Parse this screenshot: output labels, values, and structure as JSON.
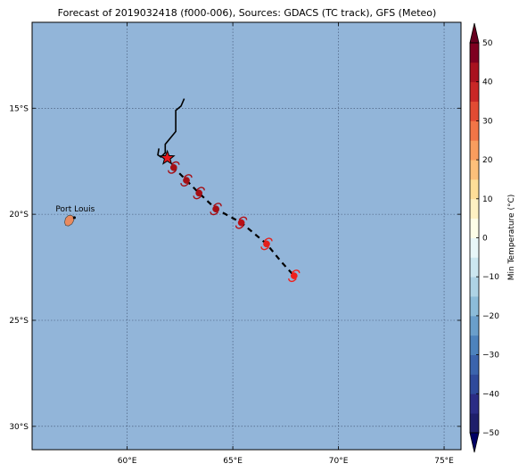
{
  "map": {
    "title": "Forecast of 2019032418 (f000-006), Sources: GDACS (TC track), GFS (Meteo)",
    "lon_range": [
      55.5,
      75.8
    ],
    "lat_range": [
      -31.1,
      -10.95
    ],
    "lon_ticks": [
      {
        "value": 60,
        "label": "60°E"
      },
      {
        "value": 65,
        "label": "65°E"
      },
      {
        "value": 70,
        "label": "70°E"
      },
      {
        "value": 75,
        "label": "75°E"
      }
    ],
    "lat_ticks": [
      {
        "value": -15,
        "label": "15°S"
      },
      {
        "value": -20,
        "label": "20°S"
      },
      {
        "value": -25,
        "label": "25°S"
      },
      {
        "value": -30,
        "label": "30°S"
      }
    ],
    "grid": true,
    "ocean_color": "#92b5d9",
    "place": {
      "name": "Port Louis",
      "lon": 57.5,
      "lat": -20.16
    },
    "past_track": [
      [
        62.7,
        -14.55
      ],
      [
        62.55,
        -14.9
      ],
      [
        62.3,
        -15.1
      ],
      [
        62.3,
        -16.1
      ],
      [
        61.8,
        -16.7
      ],
      [
        61.8,
        -17.1
      ],
      [
        61.6,
        -17.3
      ],
      [
        61.45,
        -17.2
      ],
      [
        61.5,
        -16.9
      ]
    ],
    "current_position": {
      "lon": 61.9,
      "lat": -17.35
    },
    "forecast_track": [
      [
        61.9,
        -17.35
      ],
      [
        62.2,
        -17.8
      ],
      [
        62.8,
        -18.4
      ],
      [
        63.4,
        -19.0
      ],
      [
        64.2,
        -19.75
      ],
      [
        65.4,
        -20.4
      ],
      [
        66.6,
        -21.4
      ],
      [
        67.3,
        -22.25
      ],
      [
        67.9,
        -22.9
      ]
    ],
    "forecast_points": [
      {
        "lon": 62.2,
        "lat": -17.8,
        "color": "#a50f15"
      },
      {
        "lon": 62.8,
        "lat": -18.4,
        "color": "#a50f15"
      },
      {
        "lon": 63.4,
        "lat": -19.0,
        "color": "#a50f15"
      },
      {
        "lon": 64.2,
        "lat": -19.75,
        "color": "#a50f15"
      },
      {
        "lon": 65.4,
        "lat": -20.4,
        "color": "#b81016"
      },
      {
        "lon": 66.6,
        "lat": -21.4,
        "color": "#e3201c"
      },
      {
        "lon": 67.9,
        "lat": -22.9,
        "color": "#f0201c"
      }
    ]
  },
  "colorbar": {
    "label": "Min Temperature (°C)",
    "min": -50,
    "max": 50,
    "ticks": [
      {
        "value": 50,
        "label": "50"
      },
      {
        "value": 40,
        "label": "40"
      },
      {
        "value": 30,
        "label": "30"
      },
      {
        "value": 20,
        "label": "20"
      },
      {
        "value": 10,
        "label": "10"
      },
      {
        "value": 0,
        "label": "0"
      },
      {
        "value": -10,
        "label": "−10"
      },
      {
        "value": -20,
        "label": "−20"
      },
      {
        "value": -30,
        "label": "−30"
      },
      {
        "value": -40,
        "label": "−40"
      },
      {
        "value": -50,
        "label": "−50"
      }
    ],
    "bands": [
      {
        "from": -50,
        "to": -45,
        "color": "#1f1f6b"
      },
      {
        "from": -45,
        "to": -40,
        "color": "#2b2c85"
      },
      {
        "from": -40,
        "to": -35,
        "color": "#2f4a9b"
      },
      {
        "from": -35,
        "to": -30,
        "color": "#3b64ad"
      },
      {
        "from": -30,
        "to": -25,
        "color": "#4d83bd"
      },
      {
        "from": -25,
        "to": -20,
        "color": "#6a9fcb"
      },
      {
        "from": -20,
        "to": -15,
        "color": "#8cbcd9"
      },
      {
        "from": -15,
        "to": -10,
        "color": "#aed3e5"
      },
      {
        "from": -10,
        "to": -5,
        "color": "#cce7f0"
      },
      {
        "from": -5,
        "to": 0,
        "color": "#e8f6f8"
      },
      {
        "from": 0,
        "to": 5,
        "color": "#fdfde8"
      },
      {
        "from": 5,
        "to": 10,
        "color": "#fef1c3"
      },
      {
        "from": 10,
        "to": 15,
        "color": "#fede98"
      },
      {
        "from": 15,
        "to": 20,
        "color": "#fdc07a"
      },
      {
        "from": 20,
        "to": 25,
        "color": "#f99d5e"
      },
      {
        "from": 25,
        "to": 30,
        "color": "#f27547"
      },
      {
        "from": 30,
        "to": 35,
        "color": "#e24b33"
      },
      {
        "from": 35,
        "to": 40,
        "color": "#c92726"
      },
      {
        "from": 40,
        "to": 45,
        "color": "#a9121f"
      },
      {
        "from": 45,
        "to": 50,
        "color": "#7f0020"
      }
    ],
    "extend_min_color": "#000064",
    "extend_max_color": "#67001f"
  }
}
